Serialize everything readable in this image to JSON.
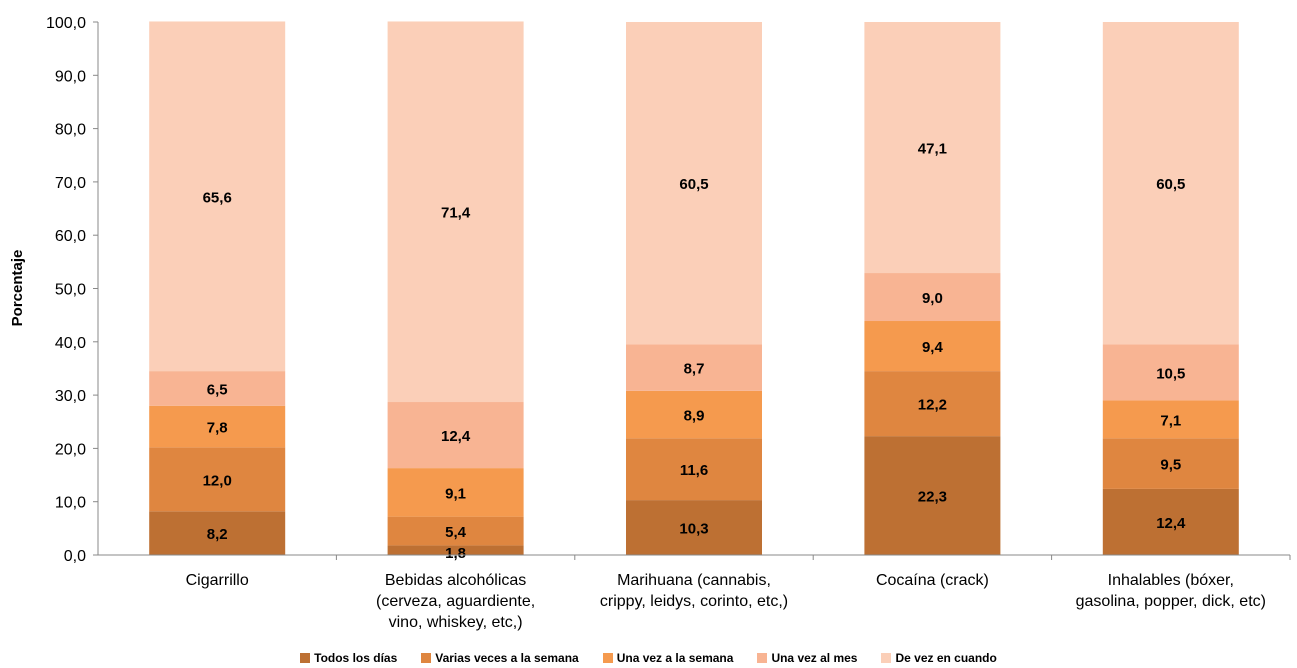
{
  "chart_data": {
    "type": "bar",
    "stacked": true,
    "categories": [
      [
        "Cigarrillo"
      ],
      [
        "Bebidas alcohólicas",
        "(cerveza, aguardiente,",
        "vino, whiskey, etc,)"
      ],
      [
        "Marihuana (cannabis,",
        "crippy, leidys, corinto, etc,)"
      ],
      [
        "Cocaína (crack)"
      ],
      [
        "Inhalables (bóxer,",
        "gasolina, popper, dick, etc)"
      ]
    ],
    "series": [
      {
        "name": "Todos los días",
        "color": "#bd7033",
        "values": [
          8.2,
          1.8,
          10.3,
          22.3,
          12.4
        ],
        "labels": [
          "8,2",
          "1,8",
          "10,3",
          "22,3",
          "12,4"
        ]
      },
      {
        "name": "Varias veces a la semana",
        "color": "#df8640",
        "values": [
          12.0,
          5.4,
          11.6,
          12.2,
          9.5
        ],
        "labels": [
          "12,0",
          "5,4",
          "11,6",
          "12,2",
          "9,5"
        ]
      },
      {
        "name": "Una vez a la semana",
        "color": "#f59a4e",
        "values": [
          7.8,
          9.1,
          8.9,
          9.4,
          7.1
        ],
        "labels": [
          "7,8",
          "9,1",
          "8,9",
          "9,4",
          "7,1"
        ]
      },
      {
        "name": "Una vez al mes",
        "color": "#f8b493",
        "values": [
          6.5,
          12.4,
          8.7,
          9.0,
          10.5
        ],
        "labels": [
          "6,5",
          "12,4",
          "8,7",
          "9,0",
          "10,5"
        ]
      },
      {
        "name": "De vez en cuando",
        "color": "#fbcfb8",
        "values": [
          65.6,
          71.4,
          60.5,
          47.1,
          60.5
        ],
        "labels": [
          "65,6",
          "71,4",
          "60,5",
          "47,1",
          "60,5"
        ]
      }
    ],
    "ylabel": "Porcentaje",
    "xlabel": "",
    "ylim": [
      0,
      100
    ],
    "yticks": [
      "0,0",
      "10,0",
      "20,0",
      "30,0",
      "40,0",
      "50,0",
      "60,0",
      "70,0",
      "80,0",
      "90,0",
      "100,0"
    ],
    "grid": false,
    "legend_position": "bottom"
  }
}
